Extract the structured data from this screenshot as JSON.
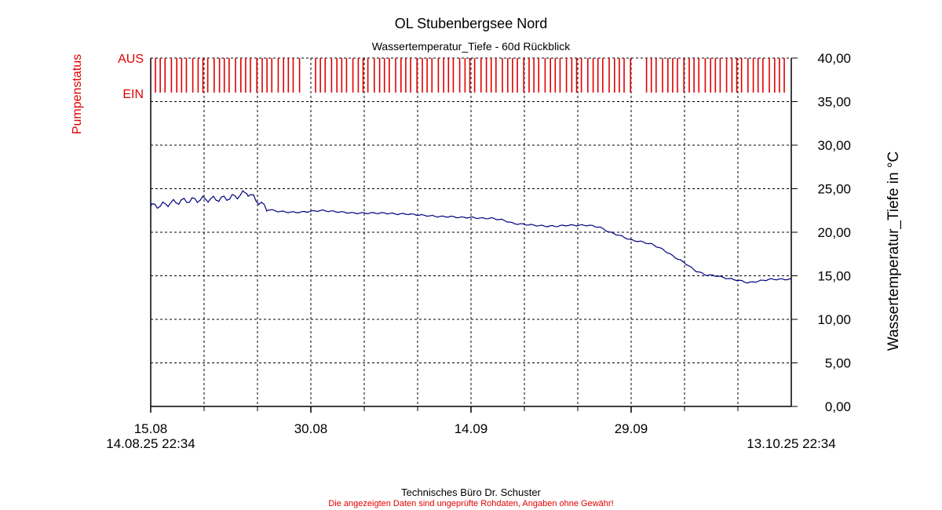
{
  "chart_data": {
    "type": "line",
    "title": "OL Stubenbergsee Nord",
    "subtitle": "Wassertemperatur_Tiefe - 60d Rückblick",
    "ylabel": "Wassertemperatur_Tiefe in °C",
    "ylim": [
      0,
      40
    ],
    "y_ticks": [
      "0,00",
      "5,00",
      "10,00",
      "15,00",
      "20,00",
      "25,00",
      "30,00",
      "35,00",
      "40,00"
    ],
    "x_range": [
      "2025-08-15",
      "2025-10-14"
    ],
    "x_ticks": [
      {
        "date": "2025-08-15",
        "label": "15.08"
      },
      {
        "date": "2025-08-30",
        "label": "30.08"
      },
      {
        "date": "2025-09-14",
        "label": "14.09"
      },
      {
        "date": "2025-09-29",
        "label": "29.09"
      }
    ],
    "start_label": "14.08.25 22:34",
    "end_label": "13.10.25 22:34",
    "grid": true,
    "series": [
      {
        "color": "#000080",
        "x": [
          "2025-08-15",
          "2025-08-16",
          "2025-08-17",
          "2025-08-18",
          "2025-08-19",
          "2025-08-20",
          "2025-08-21",
          "2025-08-22",
          "2025-08-23",
          "2025-08-24",
          "2025-08-25",
          "2025-08-26",
          "2025-08-27",
          "2025-08-28",
          "2025-08-29",
          "2025-08-30",
          "2025-08-31",
          "2025-09-01",
          "2025-09-02",
          "2025-09-03",
          "2025-09-04",
          "2025-09-05",
          "2025-09-06",
          "2025-09-07",
          "2025-09-08",
          "2025-09-09",
          "2025-09-10",
          "2025-09-11",
          "2025-09-12",
          "2025-09-13",
          "2025-09-14",
          "2025-09-15",
          "2025-09-16",
          "2025-09-17",
          "2025-09-18",
          "2025-09-19",
          "2025-09-20",
          "2025-09-21",
          "2025-09-22",
          "2025-09-23",
          "2025-09-24",
          "2025-09-25",
          "2025-09-26",
          "2025-09-27",
          "2025-09-28",
          "2025-09-29",
          "2025-09-30",
          "2025-10-01",
          "2025-10-02",
          "2025-10-03",
          "2025-10-04",
          "2025-10-05",
          "2025-10-06",
          "2025-10-07",
          "2025-10-08",
          "2025-10-09",
          "2025-10-10",
          "2025-10-11",
          "2025-10-12",
          "2025-10-13",
          "2025-10-14"
        ],
        "values": [
          23.0,
          23.1,
          23.4,
          23.6,
          23.7,
          23.8,
          23.8,
          23.9,
          24.1,
          24.6,
          23.6,
          22.6,
          22.4,
          22.3,
          22.3,
          22.4,
          22.5,
          22.4,
          22.3,
          22.2,
          22.2,
          22.2,
          22.2,
          22.1,
          22.1,
          22.0,
          21.9,
          21.8,
          21.8,
          21.7,
          21.7,
          21.6,
          21.6,
          21.4,
          21.0,
          20.9,
          20.8,
          20.7,
          20.7,
          20.8,
          20.8,
          20.8,
          20.6,
          20.0,
          19.6,
          19.1,
          18.9,
          18.6,
          18.0,
          17.2,
          16.5,
          15.6,
          15.1,
          15.0,
          14.7,
          14.5,
          14.2,
          14.4,
          14.6,
          14.6,
          14.6
        ]
      }
    ],
    "pump_status": {
      "label": "Pumpenstatus",
      "off_label": "AUS",
      "on_label": "EIN",
      "color": "#e00000",
      "groups_start": [
        "2025-08-15",
        "2025-08-17",
        "2025-08-19",
        "2025-08-21",
        "2025-08-23",
        "2025-08-25",
        "2025-08-27",
        "2025-08-30",
        "2025-09-01",
        "2025-09-03",
        "2025-09-05",
        "2025-09-07",
        "2025-09-09",
        "2025-09-11",
        "2025-09-13",
        "2025-09-15",
        "2025-09-17",
        "2025-09-19",
        "2025-09-21",
        "2025-09-23",
        "2025-09-25",
        "2025-09-27",
        "2025-09-30",
        "2025-10-02",
        "2025-10-04",
        "2025-10-06",
        "2025-10-08",
        "2025-10-10",
        "2025-10-12"
      ]
    }
  },
  "footer": {
    "company": "Technisches Büro Dr. Schuster",
    "disclaimer": "Die angezeigten Daten sind ungeprüfte Rohdaten, Angaben ohne Gewähr!"
  }
}
